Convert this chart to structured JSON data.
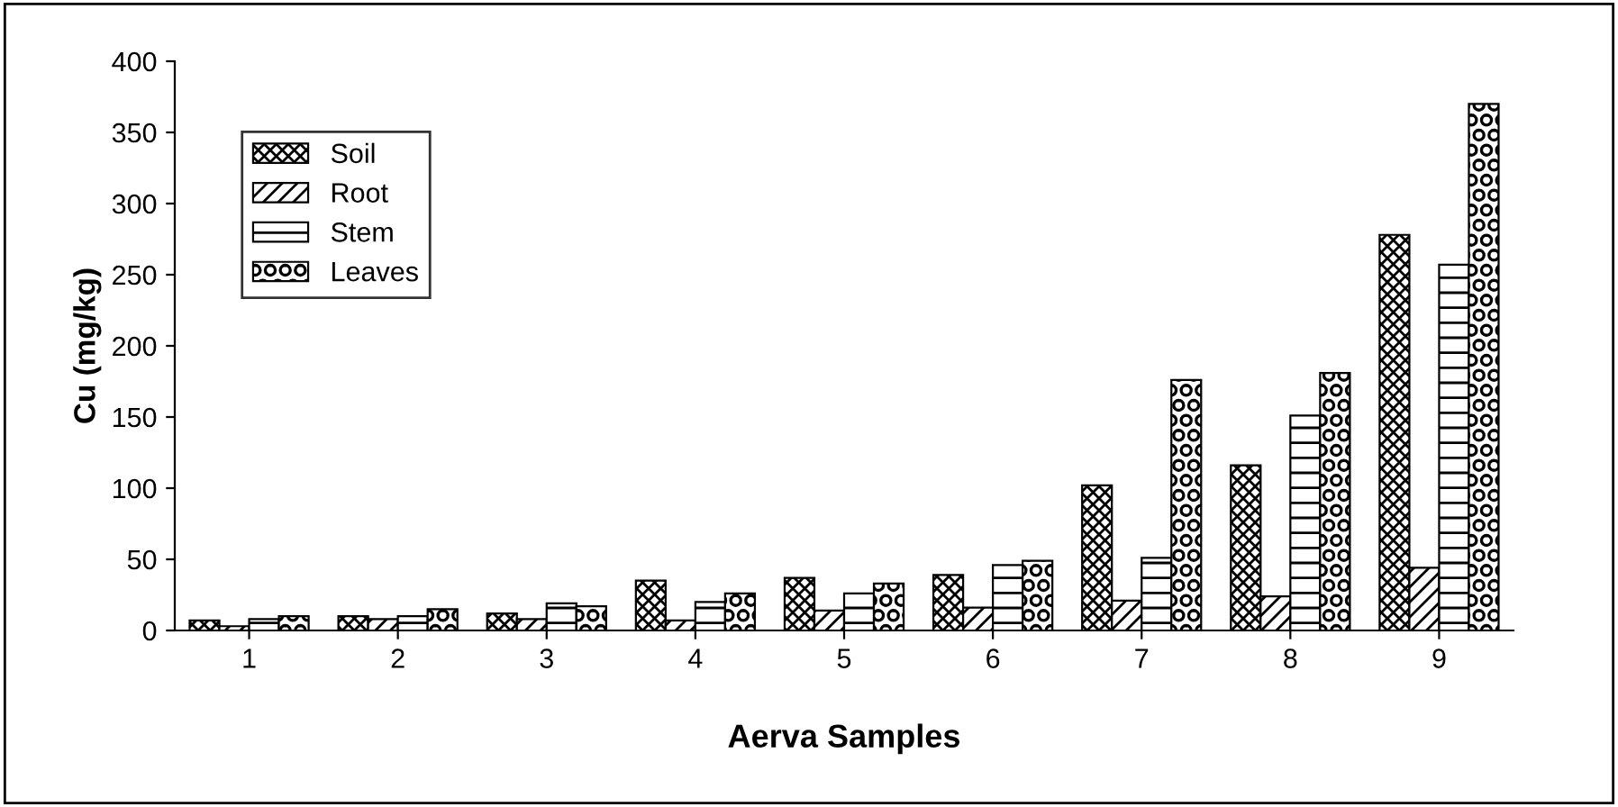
{
  "chart_data": {
    "type": "bar",
    "xlabel": "Aerva Samples",
    "ylabel": "Cu (mg/kg)",
    "categories": [
      "1",
      "2",
      "3",
      "4",
      "5",
      "6",
      "7",
      "8",
      "9"
    ],
    "series": [
      {
        "name": "Soil",
        "color": "#000000",
        "values": [
          7,
          10,
          12,
          35,
          37,
          39,
          102,
          116,
          278
        ]
      },
      {
        "name": "Root",
        "color": "#000000",
        "values": [
          3,
          8,
          8,
          7,
          14,
          16,
          21,
          24,
          44
        ]
      },
      {
        "name": "Stem",
        "color": "#000000",
        "values": [
          8,
          10,
          19,
          20,
          26,
          46,
          51,
          151,
          257
        ]
      },
      {
        "name": "Leaves",
        "color": "#000000",
        "values": [
          10,
          15,
          17,
          26,
          33,
          49,
          176,
          181,
          370
        ]
      }
    ],
    "ylim": [
      0,
      400
    ],
    "yticks": [
      0,
      50,
      100,
      150,
      200,
      250,
      300,
      350,
      400
    ],
    "grid": false,
    "legend": "top left"
  }
}
